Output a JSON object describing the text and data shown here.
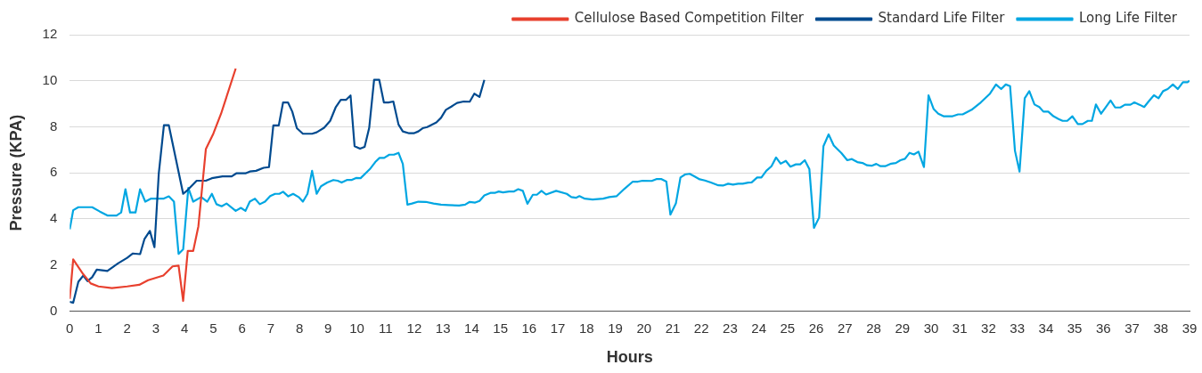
{
  "chart_data": {
    "type": "line",
    "xlabel": "Hours",
    "ylabel": "Pressure (KPA)",
    "xlim": [
      0,
      39
    ],
    "xticks": [
      0,
      1,
      2,
      3,
      4,
      5,
      6,
      7,
      8,
      9,
      10,
      11,
      12,
      13,
      14,
      15,
      16,
      17,
      18,
      19,
      20,
      21,
      22,
      23,
      24,
      25,
      26,
      27,
      28,
      29,
      30,
      31,
      32,
      33,
      34,
      35,
      36,
      37,
      38,
      39
    ],
    "ylim": [
      0,
      12
    ],
    "yticks": [
      0,
      2,
      4,
      6,
      8,
      10,
      12
    ],
    "grid": "y",
    "legend": "top",
    "marker": "none",
    "line_style": "solid",
    "series": [
      {
        "name": "Cellulose Based Competition Filter",
        "color": "#e8402e",
        "x": [
          0,
          0.12,
          0.47,
          0.73,
          1.0,
          1.47,
          2.0,
          2.42,
          2.73,
          3.26,
          3.58,
          3.79,
          3.95,
          4.11,
          4.3,
          4.48,
          4.74,
          5.0,
          5.27,
          5.78
        ],
        "values": [
          0.53,
          2.24,
          1.6,
          1.2,
          1.07,
          1.0,
          1.07,
          1.14,
          1.34,
          1.54,
          1.94,
          1.97,
          0.44,
          2.61,
          2.61,
          3.68,
          7.03,
          7.7,
          8.57,
          10.53
        ]
      },
      {
        "name": "Standard Life Filter",
        "color": "#004a8f",
        "x": [
          0,
          0.12,
          0.3,
          0.47,
          0.62,
          0.78,
          0.94,
          1.31,
          1.68,
          2.0,
          2.2,
          2.45,
          2.6,
          2.79,
          2.95,
          3.1,
          3.28,
          3.45,
          3.95,
          4.11,
          4.42,
          4.74,
          4.95,
          5.32,
          5.64,
          5.8,
          6.12,
          6.27,
          6.49,
          6.75,
          6.94,
          7.09,
          7.28,
          7.43,
          7.6,
          7.75,
          7.91,
          8.12,
          8.44,
          8.6,
          8.86,
          9.07,
          9.26,
          9.44,
          9.62,
          9.78,
          9.92,
          10.11,
          10.27,
          10.43,
          10.6,
          10.78,
          10.94,
          11.1,
          11.27,
          11.45,
          11.6,
          11.82,
          11.98,
          12.14,
          12.29,
          12.45,
          12.77,
          12.93,
          13.1,
          13.29,
          13.49,
          13.72,
          13.93,
          14.09,
          14.27,
          14.44
        ],
        "values": [
          0.4,
          0.36,
          1.27,
          1.54,
          1.3,
          1.47,
          1.8,
          1.74,
          2.07,
          2.31,
          2.5,
          2.47,
          3.12,
          3.48,
          2.77,
          5.96,
          8.07,
          8.07,
          5.09,
          5.26,
          5.66,
          5.66,
          5.77,
          5.85,
          5.85,
          5.98,
          5.98,
          6.06,
          6.09,
          6.22,
          6.25,
          8.06,
          8.06,
          9.06,
          9.06,
          8.66,
          7.94,
          7.7,
          7.7,
          7.76,
          7.96,
          8.26,
          8.84,
          9.17,
          9.17,
          9.36,
          7.16,
          7.05,
          7.13,
          7.96,
          10.04,
          10.04,
          9.06,
          9.06,
          9.1,
          8.1,
          7.8,
          7.72,
          7.72,
          7.8,
          7.94,
          7.99,
          8.19,
          8.39,
          8.74,
          8.88,
          9.04,
          9.1,
          9.09,
          9.44,
          9.3,
          10.04
        ]
      },
      {
        "name": "Long Life Filter",
        "color": "#00a6e2",
        "x": [
          0,
          0.12,
          0.3,
          0.78,
          1.05,
          1.31,
          1.63,
          1.79,
          1.94,
          2.1,
          2.29,
          2.45,
          2.63,
          2.82,
          3.26,
          3.45,
          3.63,
          3.79,
          3.95,
          4.13,
          4.3,
          4.58,
          4.79,
          4.95,
          5.11,
          5.29,
          5.46,
          5.78,
          5.96,
          6.12,
          6.27,
          6.45,
          6.62,
          6.8,
          6.98,
          7.15,
          7.3,
          7.43,
          7.61,
          7.78,
          7.97,
          8.12,
          8.28,
          8.44,
          8.6,
          8.75,
          8.97,
          9.18,
          9.33,
          9.47,
          9.65,
          9.81,
          9.97,
          10.13,
          10.45,
          10.64,
          10.79,
          10.95,
          11.13,
          11.29,
          11.45,
          11.6,
          11.76,
          11.92,
          12.14,
          12.4,
          12.67,
          12.93,
          13.19,
          13.56,
          13.77,
          13.93,
          14.12,
          14.27,
          14.44,
          14.65,
          14.8,
          14.94,
          15.09,
          15.3,
          15.46,
          15.62,
          15.78,
          15.94,
          16.13,
          16.27,
          16.43,
          16.59,
          16.94,
          17.31,
          17.47,
          17.63,
          17.75,
          17.94,
          18.21,
          18.58,
          18.79,
          19.05,
          19.32,
          19.61,
          19.79,
          19.95,
          20.27,
          20.43,
          20.61,
          20.78,
          20.92,
          21.11,
          21.27,
          21.43,
          21.59,
          21.75,
          21.94,
          22.12,
          22.33,
          22.59,
          22.75,
          22.93,
          23.1,
          23.28,
          23.44,
          23.63,
          23.75,
          23.94,
          24.09,
          24.26,
          24.44,
          24.6,
          24.76,
          24.94,
          25.1,
          25.29,
          25.44,
          25.6,
          25.76,
          25.92,
          26.1,
          26.25,
          26.43,
          26.61,
          26.87,
          27.08,
          27.24,
          27.43,
          27.61,
          27.77,
          27.93,
          28.09,
          28.24,
          28.4,
          28.61,
          28.77,
          28.93,
          29.09,
          29.25,
          29.4,
          29.56,
          29.75,
          29.91,
          30.09,
          30.25,
          30.43,
          30.75,
          30.94,
          31.1,
          31.41,
          31.73,
          32.05,
          32.26,
          32.44,
          32.6,
          32.75,
          32.92,
          33.08,
          33.26,
          33.42,
          33.6,
          33.77,
          33.91,
          34.08,
          34.26,
          34.44,
          34.58,
          34.74,
          34.92,
          35.11,
          35.27,
          35.46,
          35.6,
          35.74,
          35.92,
          36.09,
          36.25,
          36.41,
          36.59,
          36.75,
          36.94,
          37.08,
          37.26,
          37.42,
          37.6,
          37.76,
          37.92,
          38.08,
          38.24,
          38.42,
          38.59,
          38.77,
          38.93,
          39
        ],
        "values": [
          3.55,
          4.38,
          4.51,
          4.51,
          4.32,
          4.15,
          4.15,
          4.28,
          5.29,
          4.28,
          4.28,
          5.29,
          4.75,
          4.88,
          4.88,
          4.98,
          4.75,
          2.48,
          2.68,
          5.35,
          4.75,
          4.95,
          4.75,
          5.09,
          4.64,
          4.55,
          4.67,
          4.35,
          4.48,
          4.35,
          4.75,
          4.88,
          4.64,
          4.75,
          4.99,
          5.09,
          5.09,
          5.18,
          4.98,
          5.09,
          4.95,
          4.75,
          5.09,
          6.09,
          5.09,
          5.42,
          5.58,
          5.69,
          5.66,
          5.58,
          5.69,
          5.69,
          5.78,
          5.77,
          6.16,
          6.47,
          6.65,
          6.65,
          6.79,
          6.79,
          6.87,
          6.39,
          4.62,
          4.67,
          4.75,
          4.74,
          4.67,
          4.62,
          4.6,
          4.58,
          4.62,
          4.74,
          4.71,
          4.78,
          5.02,
          5.13,
          5.13,
          5.19,
          5.15,
          5.19,
          5.19,
          5.29,
          5.22,
          4.66,
          5.05,
          5.05,
          5.22,
          5.06,
          5.22,
          5.09,
          4.95,
          4.92,
          4.99,
          4.88,
          4.84,
          4.88,
          4.95,
          4.99,
          5.31,
          5.62,
          5.62,
          5.66,
          5.65,
          5.73,
          5.73,
          5.62,
          4.19,
          4.67,
          5.8,
          5.93,
          5.96,
          5.85,
          5.72,
          5.67,
          5.58,
          5.46,
          5.45,
          5.53,
          5.49,
          5.53,
          5.53,
          5.58,
          5.59,
          5.8,
          5.8,
          6.09,
          6.29,
          6.67,
          6.4,
          6.52,
          6.27,
          6.37,
          6.37,
          6.55,
          6.16,
          3.61,
          4.06,
          7.16,
          7.67,
          7.19,
          6.87,
          6.55,
          6.6,
          6.47,
          6.43,
          6.33,
          6.31,
          6.39,
          6.29,
          6.29,
          6.4,
          6.43,
          6.55,
          6.61,
          6.87,
          6.8,
          6.92,
          6.25,
          9.37,
          8.77,
          8.57,
          8.46,
          8.46,
          8.54,
          8.54,
          8.74,
          9.06,
          9.44,
          9.84,
          9.64,
          9.84,
          9.77,
          6.96,
          6.06,
          9.24,
          9.55,
          8.97,
          8.86,
          8.66,
          8.66,
          8.46,
          8.34,
          8.26,
          8.26,
          8.46,
          8.12,
          8.12,
          8.26,
          8.26,
          8.97,
          8.57,
          8.86,
          9.14,
          8.84,
          8.84,
          8.96,
          8.96,
          9.06,
          8.96,
          8.86,
          9.14,
          9.37,
          9.24,
          9.55,
          9.64,
          9.84,
          9.64,
          9.94,
          9.94,
          10.0
        ]
      }
    ]
  }
}
